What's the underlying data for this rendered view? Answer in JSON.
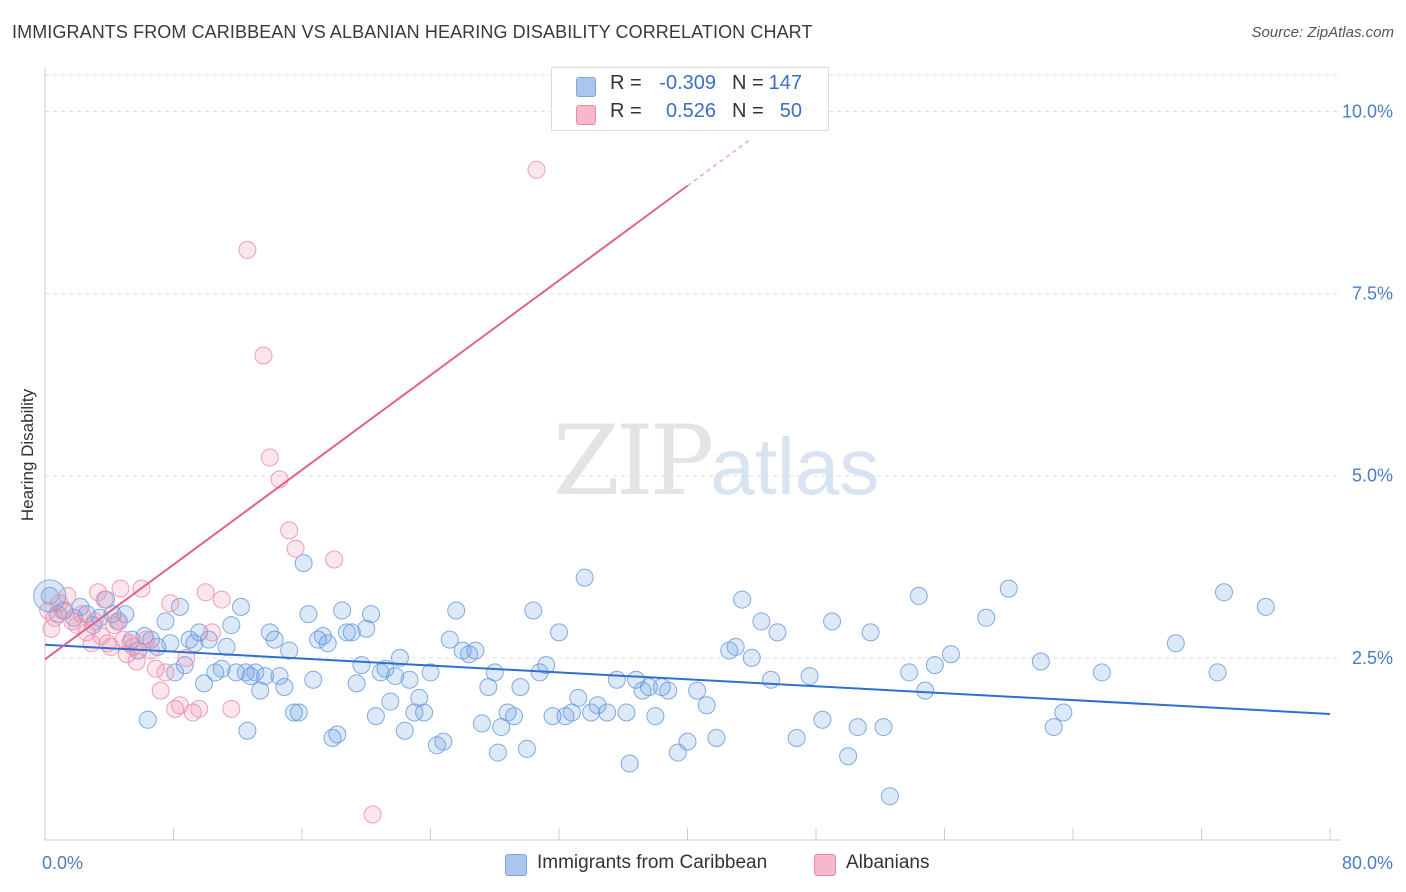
{
  "title": "IMMIGRANTS FROM CARIBBEAN VS ALBANIAN HEARING DISABILITY CORRELATION CHART",
  "source": "Source: ZipAtlas.com",
  "watermark": {
    "zip": "ZIP",
    "atlas": "atlas"
  },
  "legend": {
    "rows": [
      {
        "r_label": "R =",
        "r_value": "-0.309",
        "n_label": "N =",
        "n_value": "147",
        "color": "#a9c6ee",
        "border": "#7ea6dc"
      },
      {
        "r_label": "R =",
        "r_value": "0.526",
        "n_label": "N =",
        "n_value": "50",
        "color": "#f6b9cb",
        "border": "#e98aa7"
      }
    ]
  },
  "bottom_legend": [
    {
      "label": "Immigrants from Caribbean",
      "color": "#a9c6ee",
      "border": "#7ea6dc"
    },
    {
      "label": "Albanians",
      "color": "#f6b9cb",
      "border": "#e98aa7"
    }
  ],
  "chart_data": {
    "type": "scatter",
    "title": "IMMIGRANTS FROM CARIBBEAN VS ALBANIAN HEARING DISABILITY CORRELATION CHART",
    "xlabel": "",
    "ylabel": "Hearing Disability",
    "xlim": [
      0,
      80
    ],
    "ylim": [
      0,
      10.5
    ],
    "x_tick_labels": [
      {
        "value": 0,
        "label": "0.0%"
      },
      {
        "value": 80,
        "label": "80.0%"
      }
    ],
    "y_tick_labels": [
      {
        "value": 2.5,
        "label": "2.5%"
      },
      {
        "value": 5.0,
        "label": "5.0%"
      },
      {
        "value": 7.5,
        "label": "7.5%"
      },
      {
        "value": 10.0,
        "label": "10.0%"
      }
    ],
    "grid": "horizontal dashed",
    "series": [
      {
        "name": "Immigrants from Caribbean",
        "color": "#6a9de0",
        "trend": {
          "x": [
            0,
            80
          ],
          "y": [
            2.68,
            1.73
          ]
        },
        "points": [
          [
            0.3,
            3.35
          ],
          [
            0.8,
            3.1
          ],
          [
            1.2,
            3.15
          ],
          [
            1.8,
            3.05
          ],
          [
            2.2,
            3.2
          ],
          [
            2.6,
            3.1
          ],
          [
            3.0,
            2.95
          ],
          [
            3.4,
            3.05
          ],
          [
            3.8,
            3.3
          ],
          [
            4.2,
            3.1
          ],
          [
            4.6,
            3.0
          ],
          [
            5.0,
            3.1
          ],
          [
            5.4,
            2.75
          ],
          [
            5.8,
            2.6
          ],
          [
            6.2,
            2.8
          ],
          [
            6.6,
            2.75
          ],
          [
            7.0,
            2.65
          ],
          [
            7.5,
            3.0
          ],
          [
            7.8,
            2.7
          ],
          [
            8.1,
            2.3
          ],
          [
            8.4,
            3.2
          ],
          [
            8.7,
            2.4
          ],
          [
            9.0,
            2.75
          ],
          [
            9.3,
            2.7
          ],
          [
            9.6,
            2.85
          ],
          [
            9.9,
            2.15
          ],
          [
            10.2,
            2.75
          ],
          [
            10.6,
            2.3
          ],
          [
            11.0,
            2.35
          ],
          [
            11.3,
            2.65
          ],
          [
            11.6,
            2.95
          ],
          [
            11.9,
            2.3
          ],
          [
            12.2,
            3.2
          ],
          [
            12.5,
            2.3
          ],
          [
            12.8,
            2.25
          ],
          [
            13.1,
            2.3
          ],
          [
            13.4,
            2.05
          ],
          [
            13.7,
            2.25
          ],
          [
            14.0,
            2.85
          ],
          [
            14.3,
            2.75
          ],
          [
            14.6,
            2.25
          ],
          [
            14.9,
            2.1
          ],
          [
            15.2,
            2.6
          ],
          [
            15.5,
            1.75
          ],
          [
            15.8,
            1.75
          ],
          [
            16.1,
            3.8
          ],
          [
            16.4,
            3.1
          ],
          [
            16.7,
            2.2
          ],
          [
            17.0,
            2.75
          ],
          [
            17.3,
            2.8
          ],
          [
            17.6,
            2.7
          ],
          [
            17.9,
            1.4
          ],
          [
            18.2,
            1.45
          ],
          [
            18.5,
            3.15
          ],
          [
            18.8,
            2.85
          ],
          [
            19.1,
            2.85
          ],
          [
            19.4,
            2.15
          ],
          [
            19.7,
            2.4
          ],
          [
            20.0,
            2.9
          ],
          [
            20.3,
            3.1
          ],
          [
            20.6,
            1.7
          ],
          [
            20.9,
            2.3
          ],
          [
            21.2,
            2.35
          ],
          [
            21.5,
            1.9
          ],
          [
            21.8,
            2.25
          ],
          [
            22.1,
            2.5
          ],
          [
            22.4,
            1.5
          ],
          [
            22.7,
            2.2
          ],
          [
            23.0,
            1.75
          ],
          [
            23.3,
            1.95
          ],
          [
            23.6,
            1.75
          ],
          [
            24.0,
            2.3
          ],
          [
            24.4,
            1.3
          ],
          [
            24.8,
            1.35
          ],
          [
            25.2,
            2.75
          ],
          [
            25.6,
            3.15
          ],
          [
            26.0,
            2.6
          ],
          [
            26.4,
            2.55
          ],
          [
            26.8,
            2.6
          ],
          [
            27.2,
            1.6
          ],
          [
            27.6,
            2.1
          ],
          [
            28.0,
            2.3
          ],
          [
            28.4,
            1.55
          ],
          [
            28.8,
            1.75
          ],
          [
            29.2,
            1.7
          ],
          [
            29.6,
            2.1
          ],
          [
            30.0,
            1.25
          ],
          [
            30.4,
            3.15
          ],
          [
            30.8,
            2.3
          ],
          [
            31.2,
            2.4
          ],
          [
            31.6,
            1.7
          ],
          [
            32.0,
            2.85
          ],
          [
            32.4,
            1.7
          ],
          [
            32.8,
            1.75
          ],
          [
            33.2,
            1.95
          ],
          [
            33.6,
            3.6
          ],
          [
            34.0,
            1.75
          ],
          [
            34.4,
            1.85
          ],
          [
            35.0,
            1.75
          ],
          [
            35.6,
            2.2
          ],
          [
            36.2,
            1.75
          ],
          [
            36.8,
            2.2
          ],
          [
            37.2,
            2.05
          ],
          [
            37.6,
            2.1
          ],
          [
            38.0,
            1.7
          ],
          [
            38.4,
            2.1
          ],
          [
            38.8,
            2.05
          ],
          [
            39.4,
            1.2
          ],
          [
            40.0,
            1.35
          ],
          [
            40.6,
            2.05
          ],
          [
            41.2,
            1.85
          ],
          [
            41.8,
            1.4
          ],
          [
            42.6,
            2.6
          ],
          [
            43.0,
            2.65
          ],
          [
            43.4,
            3.3
          ],
          [
            44.0,
            2.5
          ],
          [
            44.6,
            3.0
          ],
          [
            45.2,
            2.2
          ],
          [
            45.6,
            2.85
          ],
          [
            46.8,
            1.4
          ],
          [
            47.6,
            2.25
          ],
          [
            48.4,
            1.65
          ],
          [
            49.0,
            3.0
          ],
          [
            50.0,
            1.15
          ],
          [
            50.6,
            1.55
          ],
          [
            51.4,
            2.85
          ],
          [
            52.6,
            0.6
          ],
          [
            53.8,
            2.3
          ],
          [
            54.4,
            3.35
          ],
          [
            54.8,
            2.05
          ],
          [
            55.4,
            2.4
          ],
          [
            56.4,
            2.55
          ],
          [
            58.6,
            3.05
          ],
          [
            60.0,
            3.45
          ],
          [
            62.0,
            2.45
          ],
          [
            62.8,
            1.55
          ],
          [
            63.4,
            1.75
          ],
          [
            65.8,
            2.3
          ],
          [
            70.4,
            2.7
          ],
          [
            73.0,
            2.3
          ],
          [
            73.4,
            3.4
          ],
          [
            76.0,
            3.2
          ],
          [
            52.2,
            1.55
          ],
          [
            36.4,
            1.05
          ],
          [
            12.6,
            1.5
          ],
          [
            6.4,
            1.65
          ],
          [
            28.2,
            1.2
          ]
        ]
      },
      {
        "name": "Albanians",
        "color": "#ef8fae",
        "trend": {
          "x": [
            0,
            40
          ],
          "y": [
            2.48,
            8.98
          ]
        },
        "points": [
          [
            0.2,
            3.15
          ],
          [
            0.4,
            2.9
          ],
          [
            0.6,
            3.05
          ],
          [
            0.9,
            3.25
          ],
          [
            1.1,
            3.15
          ],
          [
            1.4,
            3.35
          ],
          [
            1.7,
            3.0
          ],
          [
            2.0,
            2.95
          ],
          [
            2.3,
            3.1
          ],
          [
            2.6,
            2.85
          ],
          [
            2.9,
            2.7
          ],
          [
            3.1,
            3.0
          ],
          [
            3.3,
            3.4
          ],
          [
            3.5,
            2.8
          ],
          [
            3.7,
            3.3
          ],
          [
            3.9,
            2.7
          ],
          [
            4.1,
            2.65
          ],
          [
            4.3,
            2.95
          ],
          [
            4.5,
            3.0
          ],
          [
            4.7,
            3.45
          ],
          [
            4.9,
            2.75
          ],
          [
            5.1,
            2.55
          ],
          [
            5.3,
            2.7
          ],
          [
            5.5,
            2.65
          ],
          [
            5.7,
            2.45
          ],
          [
            6.0,
            3.45
          ],
          [
            6.3,
            2.75
          ],
          [
            6.6,
            2.6
          ],
          [
            6.9,
            2.35
          ],
          [
            7.2,
            2.05
          ],
          [
            7.5,
            2.3
          ],
          [
            7.8,
            3.25
          ],
          [
            8.1,
            1.8
          ],
          [
            8.4,
            1.85
          ],
          [
            8.8,
            2.5
          ],
          [
            9.2,
            1.75
          ],
          [
            9.6,
            1.8
          ],
          [
            10.0,
            3.4
          ],
          [
            10.4,
            2.85
          ],
          [
            11.0,
            3.3
          ],
          [
            11.6,
            1.8
          ],
          [
            12.6,
            8.1
          ],
          [
            13.6,
            6.65
          ],
          [
            14.0,
            5.25
          ],
          [
            14.6,
            4.95
          ],
          [
            15.2,
            4.25
          ],
          [
            15.6,
            4.0
          ],
          [
            18.0,
            3.85
          ],
          [
            20.4,
            0.35
          ],
          [
            30.6,
            9.2
          ]
        ]
      }
    ]
  }
}
